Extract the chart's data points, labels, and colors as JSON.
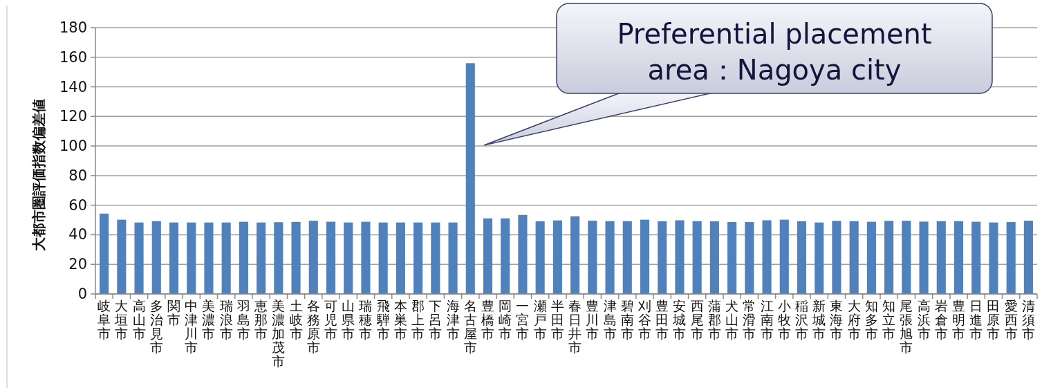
{
  "chart_data": {
    "type": "bar",
    "ylabel": "大都市圏評価指数偏差値",
    "categories": [
      "岐阜市",
      "大垣市",
      "高山市",
      "多治見市",
      "関市",
      "中津川市",
      "美濃市",
      "瑞浪市",
      "羽島市",
      "恵那市",
      "美濃加茂市",
      "土岐市",
      "各務原市",
      "可児市",
      "山県市",
      "瑞穂市",
      "飛騨市",
      "本巣市",
      "郡上市",
      "下呂市",
      "海津市",
      "名古屋市",
      "豊橋市",
      "岡崎市",
      "一宮市",
      "瀬戸市",
      "半田市",
      "春日井市",
      "豊川市",
      "津島市",
      "碧南市",
      "刈谷市",
      "豊田市",
      "安城市",
      "西尾市",
      "蒲郡市",
      "犬山市",
      "常滑市",
      "江南市",
      "小牧市",
      "稲沢市",
      "新城市",
      "東海市",
      "大府市",
      "知多市",
      "知立市",
      "尾張旭市",
      "高浜市",
      "岩倉市",
      "豊明市",
      "日進市",
      "田原市",
      "愛西市",
      "清須市"
    ],
    "values": [
      54.3,
      50.2,
      48.3,
      49.2,
      48.3,
      48.3,
      48.3,
      48.3,
      48.8,
      48.3,
      48.5,
      48.7,
      49.5,
      48.8,
      48.3,
      48.8,
      48.3,
      48.3,
      48.3,
      48.3,
      48.3,
      156,
      51.1,
      51.1,
      53.4,
      49.1,
      49.7,
      52.5,
      49.5,
      49.2,
      49.2,
      50.2,
      49.1,
      49.8,
      49.2,
      49.1,
      48.6,
      48.6,
      49.8,
      50.2,
      49.1,
      48.3,
      49.4,
      49.2,
      48.8,
      49.4,
      49.5,
      48.9,
      49.2,
      49.2,
      48.8,
      48.3,
      48.6,
      49.5
    ],
    "color": "#4f81bd",
    "ylim": [
      0,
      180
    ],
    "yticks": [
      0,
      20,
      40,
      60,
      80,
      100,
      120,
      140,
      160,
      180
    ],
    "grid": "y",
    "annotations": [
      "Preferential placement\narea：Nagoya city"
    ]
  }
}
